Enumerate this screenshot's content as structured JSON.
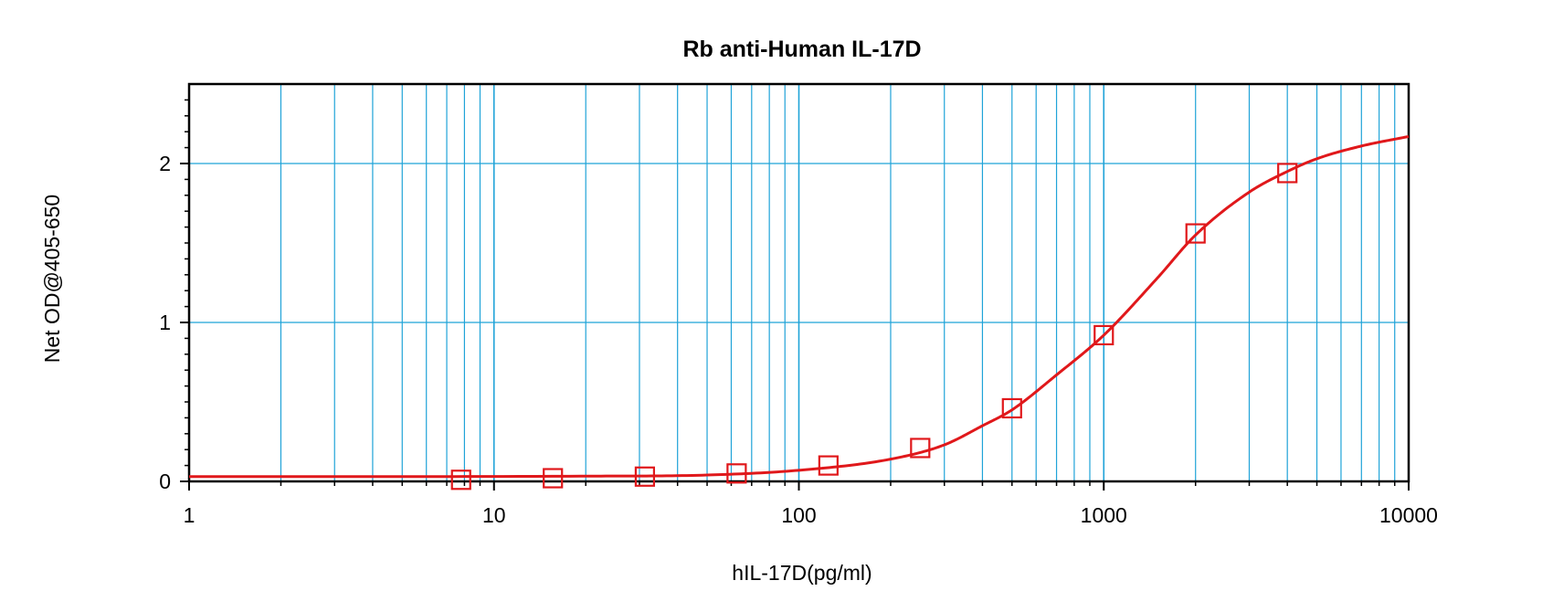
{
  "chart_data": {
    "type": "scatter",
    "title": "Rb anti-Human IL-17D",
    "xlabel": "hIL-17D(pg/ml)",
    "ylabel": "Net OD@405-650",
    "x_scale": "log",
    "xlim": [
      1,
      10000
    ],
    "ylim": [
      0,
      2.5
    ],
    "x_ticks": [
      1,
      10,
      100,
      1000,
      10000
    ],
    "x_tick_labels": [
      "1",
      "10",
      "100",
      "1000",
      "10000"
    ],
    "y_ticks": [
      0,
      1,
      2
    ],
    "y_tick_labels": [
      "0",
      "1",
      "2"
    ],
    "grid": true,
    "legend": "none",
    "series": [
      {
        "marker": "square",
        "x": [
          7.8,
          15.6,
          31.25,
          62.5,
          125,
          250,
          500,
          1000,
          2000,
          4000
        ],
        "y": [
          0.01,
          0.02,
          0.03,
          0.05,
          0.1,
          0.21,
          0.46,
          0.92,
          1.56,
          1.94
        ]
      }
    ],
    "fit_curve": {
      "type": "4-parameter logistic",
      "x": [
        1,
        20,
        50,
        100,
        200,
        300,
        400,
        500,
        700,
        1000,
        1500,
        2000,
        3000,
        4000,
        5000,
        7000,
        10000
      ],
      "y": [
        0.03,
        0.033,
        0.04,
        0.07,
        0.14,
        0.23,
        0.35,
        0.45,
        0.67,
        0.92,
        1.28,
        1.55,
        1.82,
        1.95,
        2.03,
        2.11,
        2.17
      ]
    },
    "colors": {
      "grid": "#1fa3d8",
      "series": "#e0181b",
      "axis": "#000000"
    }
  }
}
